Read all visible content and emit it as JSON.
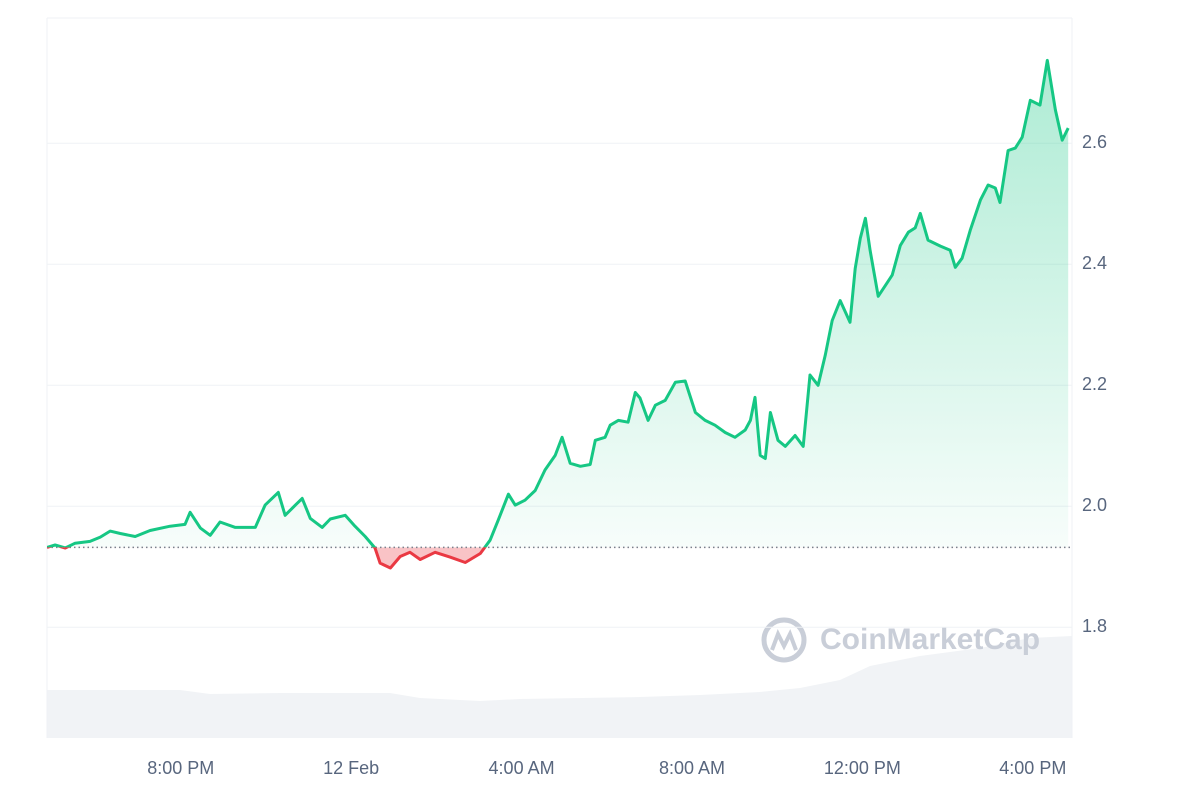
{
  "chart_data": {
    "type": "baseline-line",
    "watermark": "CoinMarketCap",
    "x": [
      -7.14,
      -6.95,
      -6.71,
      -6.48,
      -6.13,
      -5.89,
      -5.66,
      -5.42,
      -5.07,
      -4.72,
      -4.25,
      -3.9,
      -3.78,
      -3.54,
      -3.31,
      -3.08,
      -2.72,
      -2.25,
      -2.02,
      -1.71,
      -1.55,
      -1.31,
      -1.15,
      -0.96,
      -0.68,
      -0.49,
      -0.14,
      0.09,
      0.33,
      0.56,
      0.68,
      0.92,
      1.15,
      1.38,
      1.62,
      1.97,
      2.32,
      2.68,
      3.03,
      3.26,
      3.45,
      3.69,
      3.85,
      4.08,
      4.32,
      4.55,
      4.79,
      4.95,
      5.14,
      5.38,
      5.61,
      5.73,
      5.96,
      6.08,
      6.27,
      6.5,
      6.67,
      6.78,
      6.97,
      7.14,
      7.37,
      7.61,
      7.84,
      8.08,
      8.31,
      8.54,
      8.78,
      9.01,
      9.25,
      9.37,
      9.48,
      9.6,
      9.72,
      9.84,
      10.02,
      10.19,
      10.42,
      10.61,
      10.77,
      10.96,
      11.13,
      11.29,
      11.48,
      11.71,
      11.83,
      11.95,
      12.07,
      12.18,
      12.37,
      12.54,
      12.7,
      12.89,
      13.08,
      13.24,
      13.36,
      13.54,
      13.83,
      14.06,
      14.18,
      14.34,
      14.53,
      14.77,
      14.95,
      15.12,
      15.23,
      15.42,
      15.59,
      15.75,
      15.94,
      16.17,
      16.34,
      16.53,
      16.69,
      16.83
    ],
    "values": [
      1.932,
      1.936,
      1.931,
      1.939,
      1.942,
      1.949,
      1.959,
      1.955,
      1.95,
      1.96,
      1.967,
      1.97,
      1.99,
      1.964,
      1.952,
      1.974,
      1.965,
      1.965,
      2.002,
      2.023,
      1.985,
      2.002,
      2.013,
      1.98,
      1.965,
      1.979,
      1.985,
      1.967,
      1.95,
      1.931,
      1.906,
      1.898,
      1.917,
      1.924,
      1.912,
      1.924,
      1.916,
      1.907,
      1.922,
      1.944,
      1.977,
      2.02,
      2.002,
      2.01,
      2.026,
      2.06,
      2.084,
      2.114,
      2.071,
      2.066,
      2.069,
      2.109,
      2.114,
      2.134,
      2.142,
      2.139,
      2.188,
      2.179,
      2.142,
      2.167,
      2.175,
      2.205,
      2.207,
      2.155,
      2.142,
      2.134,
      2.122,
      2.114,
      2.126,
      2.142,
      2.18,
      2.084,
      2.079,
      2.155,
      2.109,
      2.099,
      2.117,
      2.099,
      2.217,
      2.2,
      2.25,
      2.307,
      2.34,
      2.304,
      2.393,
      2.443,
      2.476,
      2.423,
      2.347,
      2.365,
      2.382,
      2.431,
      2.453,
      2.46,
      2.484,
      2.44,
      2.43,
      2.423,
      2.395,
      2.41,
      2.456,
      2.506,
      2.531,
      2.526,
      2.502,
      2.588,
      2.592,
      2.61,
      2.671,
      2.663,
      2.737,
      2.655,
      2.605,
      2.625
    ],
    "baseline": 1.932,
    "up_color": "#16c784",
    "down_color": "#ea3943",
    "xlim": [
      -7.14,
      16.92
    ],
    "xticks": [
      {
        "value": -4,
        "label": "8:00 PM"
      },
      {
        "value": 0,
        "label": "12 Feb"
      },
      {
        "value": 4,
        "label": "4:00 AM"
      },
      {
        "value": 8,
        "label": "8:00 AM"
      },
      {
        "value": 12,
        "label": "12:00 PM"
      },
      {
        "value": 16,
        "label": "4:00 PM"
      }
    ],
    "ylim": [
      1.617,
      2.807
    ],
    "yticks": [
      1.8,
      {
        "value": 2,
        "label": "2.0"
      },
      2.2,
      2.4,
      2.6
    ],
    "grid": true
  }
}
